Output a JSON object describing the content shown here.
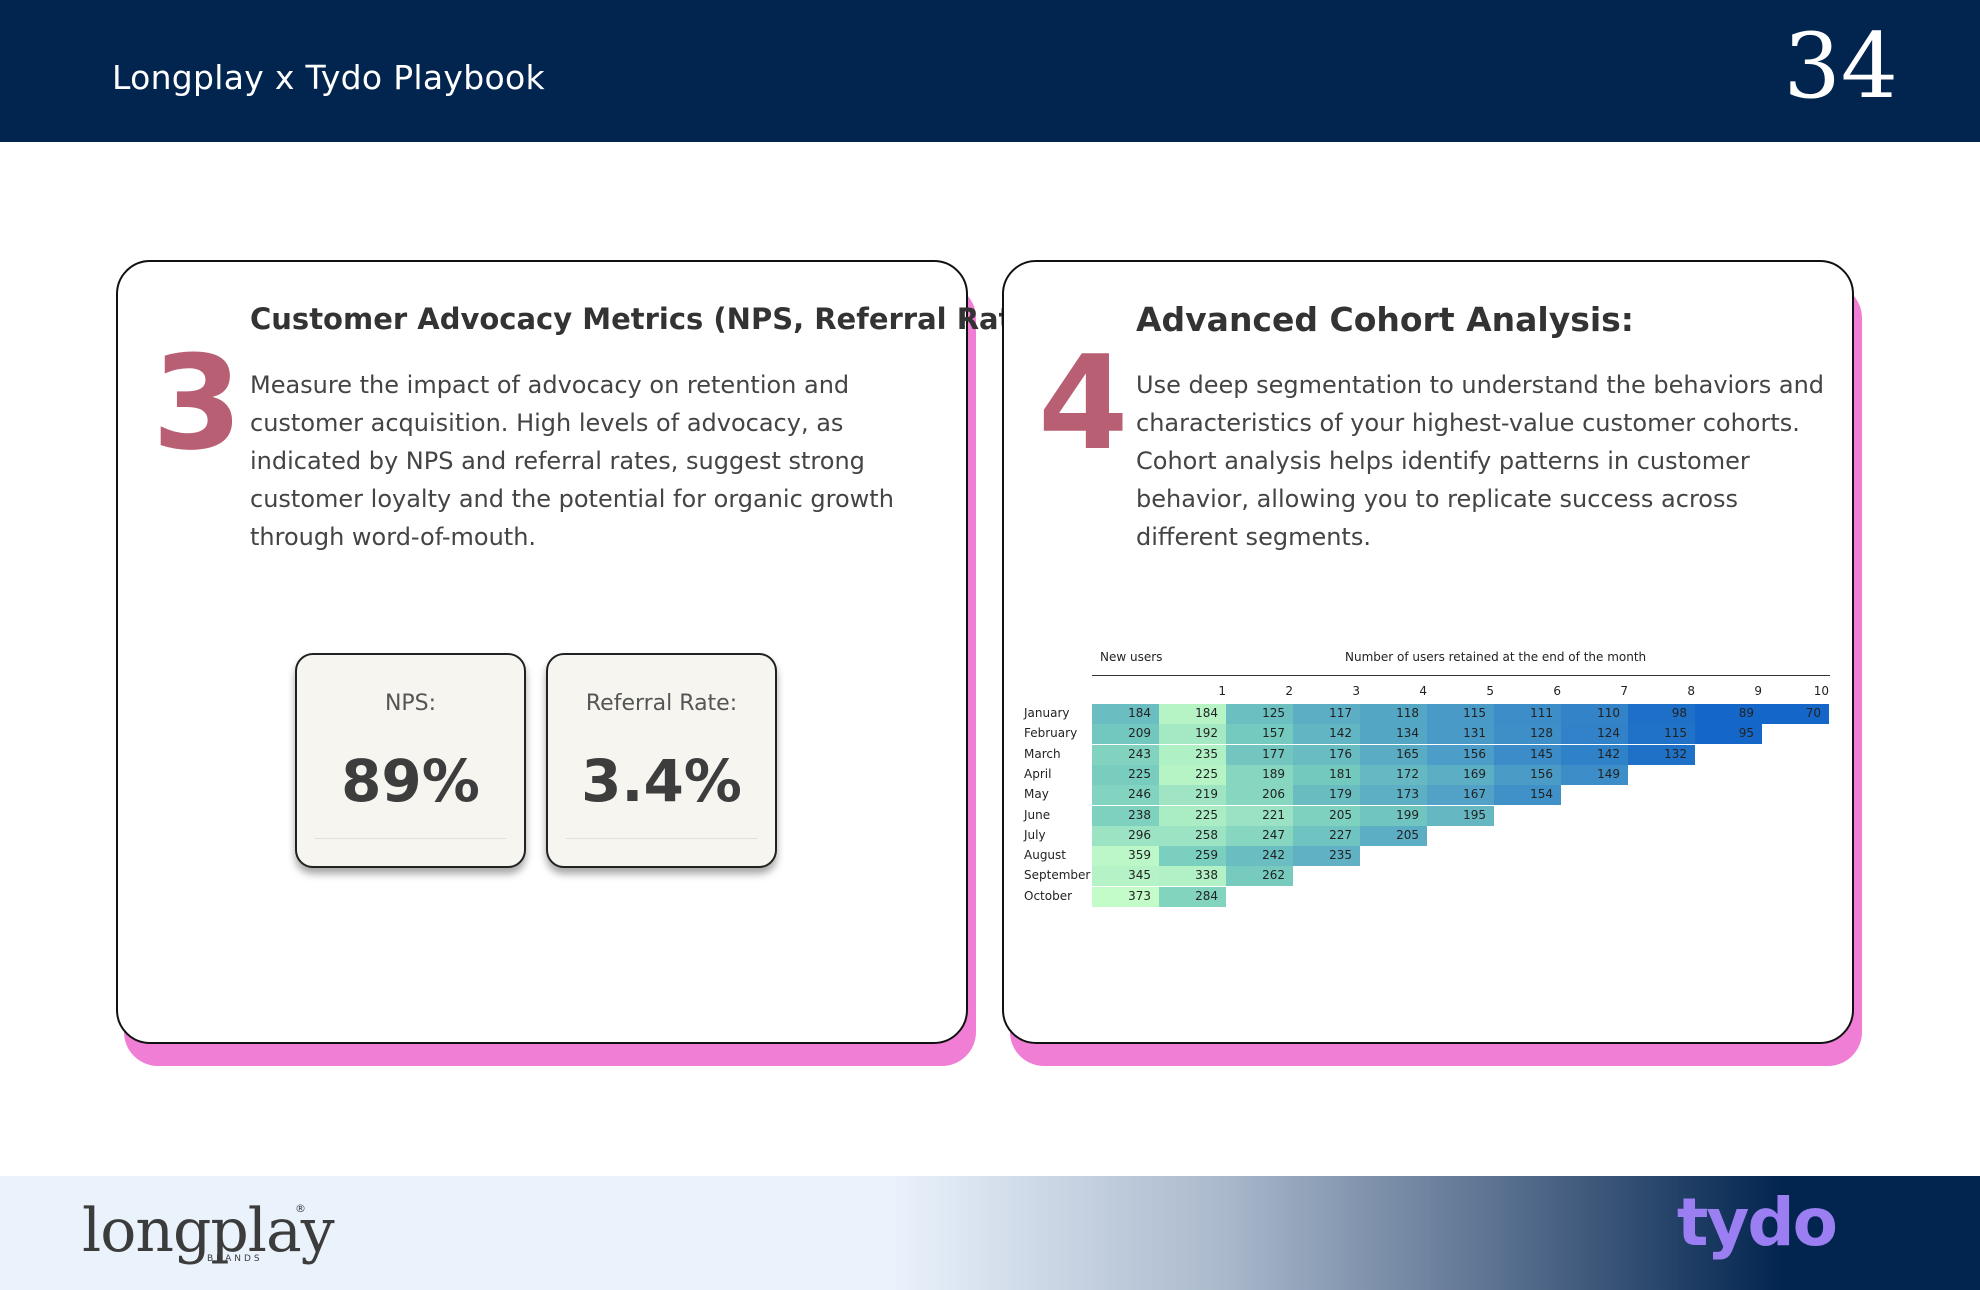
{
  "header": {
    "title": "Longplay x Tydo Playbook",
    "page_number": "34"
  },
  "cards": [
    {
      "number": "3",
      "title": "Customer Advocacy Metrics (NPS, Referral Rate):",
      "body": "Measure the impact of advocacy on retention and customer acquisition. High levels of advocacy, as indicated by NPS and referral rates, suggest strong customer loyalty and the potential for organic growth through word-of-mouth.",
      "metrics": [
        {
          "label": "NPS:",
          "value": "89%"
        },
        {
          "label": "Referral Rate:",
          "value": "3.4%"
        }
      ]
    },
    {
      "number": "4",
      "title": "Advanced Cohort Analysis:",
      "body": "Use deep segmentation to understand the behaviors and characteristics of your highest-value customer cohorts. Cohort analysis helps identify patterns in customer behavior, allowing you to replicate success across different segments."
    }
  ],
  "chart_data": {
    "type": "heatmap",
    "new_users_header": "New users",
    "retention_header": "Number of users retained at the end of the month",
    "columns": [
      "1",
      "2",
      "3",
      "4",
      "5",
      "6",
      "7",
      "8",
      "9",
      "10"
    ],
    "rows": [
      {
        "month": "January",
        "new_users": 184,
        "retained": [
          184,
          125,
          117,
          118,
          115,
          111,
          110,
          98,
          89,
          70
        ]
      },
      {
        "month": "February",
        "new_users": 209,
        "retained": [
          192,
          157,
          142,
          134,
          131,
          128,
          124,
          115,
          95
        ]
      },
      {
        "month": "March",
        "new_users": 243,
        "retained": [
          235,
          177,
          176,
          165,
          156,
          145,
          142,
          132
        ]
      },
      {
        "month": "April",
        "new_users": 225,
        "retained": [
          225,
          189,
          181,
          172,
          169,
          156,
          149
        ]
      },
      {
        "month": "May",
        "new_users": 246,
        "retained": [
          219,
          206,
          179,
          173,
          167,
          154
        ]
      },
      {
        "month": "June",
        "new_users": 238,
        "retained": [
          225,
          221,
          205,
          199,
          195
        ]
      },
      {
        "month": "July",
        "new_users": 296,
        "retained": [
          258,
          247,
          227,
          205
        ]
      },
      {
        "month": "August",
        "new_users": 359,
        "retained": [
          259,
          242,
          235
        ]
      },
      {
        "month": "September",
        "new_users": 345,
        "retained": [
          338,
          262
        ]
      },
      {
        "month": "October",
        "new_users": 373,
        "retained": [
          284
        ]
      }
    ],
    "color_low": "#c3fcc8",
    "color_high": "#1467c8"
  },
  "footer": {
    "logo_left": "longplay",
    "logo_left_sub": "BRANDS",
    "logo_left_mark": "®",
    "logo_right": "tydo"
  },
  "colors": {
    "navy": "#02254f",
    "accent_pink": "#f07ed5",
    "number_rose": "#b85f74",
    "tydo_purple": "#9b7ff2"
  }
}
